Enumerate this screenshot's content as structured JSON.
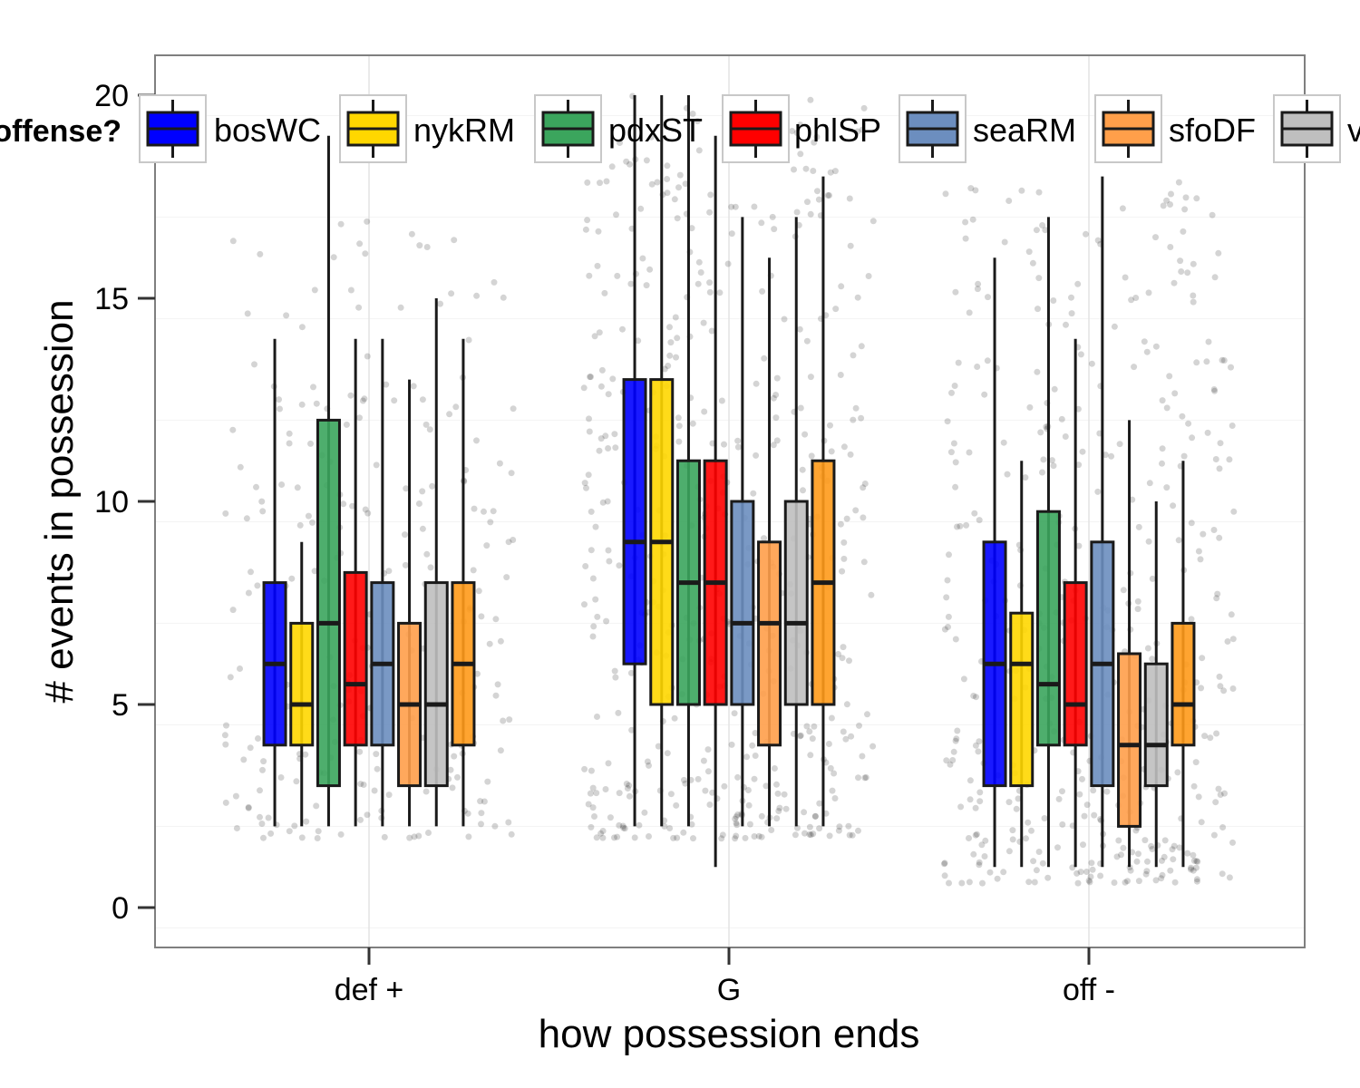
{
  "chart_data": {
    "type": "box",
    "xlabel": "how possession ends",
    "ylabel": "# events in possession",
    "ylim": [
      -1,
      21
    ],
    "yticks": [
      0,
      5,
      10,
      15,
      20
    ],
    "categories": [
      "def +",
      "G",
      "off -"
    ],
    "grid": true,
    "legend": {
      "title": "offense?",
      "placement": "top",
      "entries": [
        "bosWC",
        "nykRM",
        "pdxST",
        "phlSP",
        "seaRM",
        "sfoDF",
        "vanNH"
      ]
    },
    "series": [
      {
        "name": "bosWC",
        "color": "#0000ff",
        "boxes": [
          {
            "category": "def +",
            "min": 2,
            "q1": 4,
            "median": 6,
            "q3": 8,
            "max": 14
          },
          {
            "category": "G",
            "min": 2,
            "q1": 6,
            "median": 9,
            "q3": 13,
            "max": 20
          },
          {
            "category": "off -",
            "min": 1,
            "q1": 3,
            "median": 6,
            "q3": 9,
            "max": 16
          }
        ]
      },
      {
        "name": "nykRM",
        "color": "#ffd700",
        "boxes": [
          {
            "category": "def +",
            "min": 2,
            "q1": 4,
            "median": 5,
            "q3": 7,
            "max": 9
          },
          {
            "category": "G",
            "min": 2,
            "q1": 5,
            "median": 9,
            "q3": 13,
            "max": 20
          },
          {
            "category": "off -",
            "min": 1,
            "q1": 3,
            "median": 6,
            "q3": 7.25,
            "max": 11
          }
        ]
      },
      {
        "name": "pdxST",
        "color": "#3ba55d",
        "boxes": [
          {
            "category": "def +",
            "min": 2,
            "q1": 3,
            "median": 7,
            "q3": 12,
            "max": 19
          },
          {
            "category": "G",
            "min": 2,
            "q1": 5,
            "median": 8,
            "q3": 11,
            "max": 20
          },
          {
            "category": "off -",
            "min": 1,
            "q1": 4,
            "median": 5.5,
            "q3": 9.75,
            "max": 17
          }
        ]
      },
      {
        "name": "phlSP",
        "color": "#ff0000",
        "boxes": [
          {
            "category": "def +",
            "min": 2,
            "q1": 4,
            "median": 5.5,
            "q3": 8.25,
            "max": 14
          },
          {
            "category": "G",
            "min": 1,
            "q1": 5,
            "median": 8,
            "q3": 11,
            "max": 19
          },
          {
            "category": "off -",
            "min": 1,
            "q1": 4,
            "median": 5,
            "q3": 8,
            "max": 14
          }
        ]
      },
      {
        "name": "seaRM",
        "color": "#6c8ebf",
        "boxes": [
          {
            "category": "def +",
            "min": 2,
            "q1": 4,
            "median": 6,
            "q3": 8,
            "max": 14
          },
          {
            "category": "G",
            "min": 2,
            "q1": 5,
            "median": 7,
            "q3": 10,
            "max": 17
          },
          {
            "category": "off -",
            "min": 1,
            "q1": 3,
            "median": 6,
            "q3": 9,
            "max": 18
          }
        ]
      },
      {
        "name": "sfoDF",
        "color": "#ff9f4a",
        "boxes": [
          {
            "category": "def +",
            "min": 2,
            "q1": 3,
            "median": 5,
            "q3": 7,
            "max": 13
          },
          {
            "category": "G",
            "min": 2,
            "q1": 4,
            "median": 7,
            "q3": 9,
            "max": 16
          },
          {
            "category": "off -",
            "min": 1,
            "q1": 2,
            "median": 4,
            "q3": 6.25,
            "max": 12
          }
        ]
      },
      {
        "name": "vanNH",
        "color": "#bfbfbf",
        "boxes": [
          {
            "category": "def +",
            "min": 2,
            "q1": 3,
            "median": 5,
            "q3": 8,
            "max": 15
          },
          {
            "category": "G",
            "min": 2,
            "q1": 5,
            "median": 7,
            "q3": 10,
            "max": 17
          },
          {
            "category": "off -",
            "min": 1,
            "q1": 3,
            "median": 4,
            "q3": 6,
            "max": 10
          }
        ]
      },
      {
        "name": "",
        "color": "#ff9a1a",
        "boxes": [
          {
            "category": "def +",
            "min": 2,
            "q1": 4,
            "median": 6,
            "q3": 8,
            "max": 14
          },
          {
            "category": "G",
            "min": 2,
            "q1": 5,
            "median": 8,
            "q3": 11,
            "max": 18
          },
          {
            "category": "off -",
            "min": 1,
            "q1": 4,
            "median": 5,
            "q3": 7,
            "max": 11
          }
        ]
      }
    ]
  }
}
